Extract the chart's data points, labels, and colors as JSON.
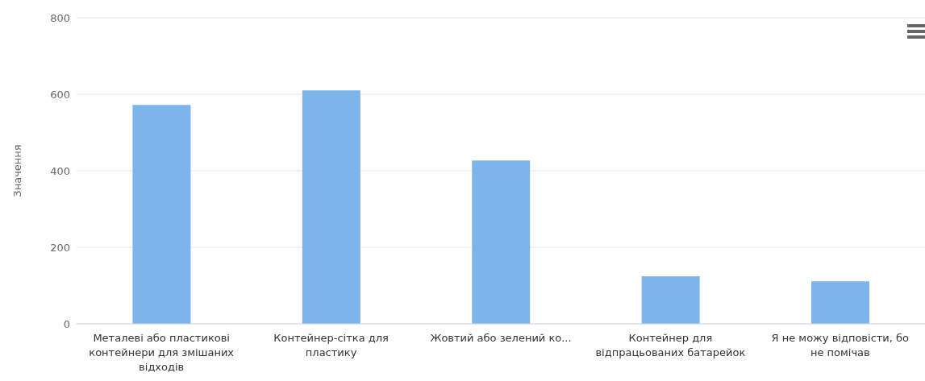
{
  "chart_data": {
    "type": "bar",
    "ylabel": "Значення",
    "categories": [
      "Металеві або пластикові контейнери для змішаних відходів",
      "Контейнер-сітка для пластику",
      "Жовтий або зелений ко...",
      "Контейнер для відпрацьованих батарейок",
      "Я не можу відповісти, бо не помічав"
    ],
    "values": [
      572,
      610,
      427,
      124,
      111
    ],
    "color": "#7cb5ec",
    "ylim": [
      0,
      800
    ],
    "yticks": [
      0,
      200,
      400,
      600,
      800
    ],
    "grid": "y",
    "legend": false
  }
}
